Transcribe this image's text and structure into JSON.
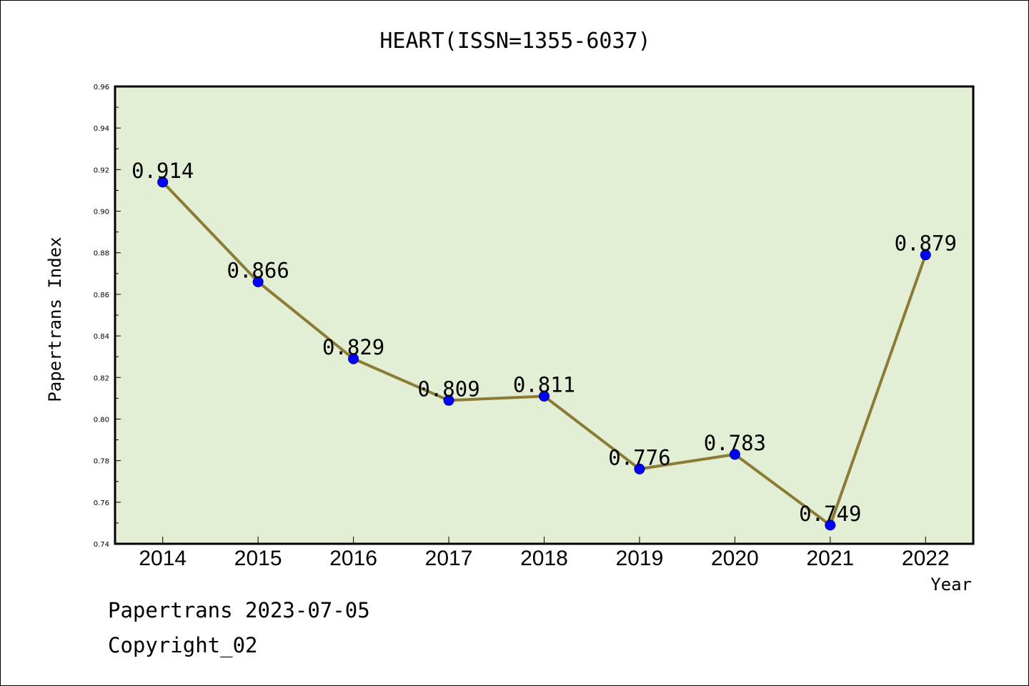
{
  "colors": {
    "plot_background": "#e2efd5",
    "line": "#8b7b35",
    "marker": "#0000ff",
    "axis": "#000000"
  },
  "chart_data": {
    "type": "line",
    "title": "HEART(ISSN=1355-6037)",
    "xlabel": "Year",
    "ylabel": "Papertrans Index",
    "categories": [
      "2014",
      "2015",
      "2016",
      "2017",
      "2018",
      "2019",
      "2020",
      "2021",
      "2022"
    ],
    "series": [
      {
        "values": [
          0.914,
          0.866,
          0.829,
          0.809,
          0.811,
          0.776,
          0.783,
          0.749,
          0.879
        ],
        "labels": [
          "0.914",
          "0.866",
          "0.829",
          "0.809",
          "0.811",
          "0.776",
          "0.783",
          "0.749",
          "0.879"
        ]
      }
    ],
    "ylim": [
      0.74,
      0.96
    ],
    "yticks": [
      "0.74",
      "0.76",
      "0.78",
      "0.80",
      "0.82",
      "0.84",
      "0.86",
      "0.88",
      "0.90",
      "0.92",
      "0.94",
      "0.96"
    ],
    "grid": false,
    "legend": "none"
  },
  "footer": {
    "line1": "Papertrans 2023-07-05",
    "line2": "Copyright_02"
  }
}
